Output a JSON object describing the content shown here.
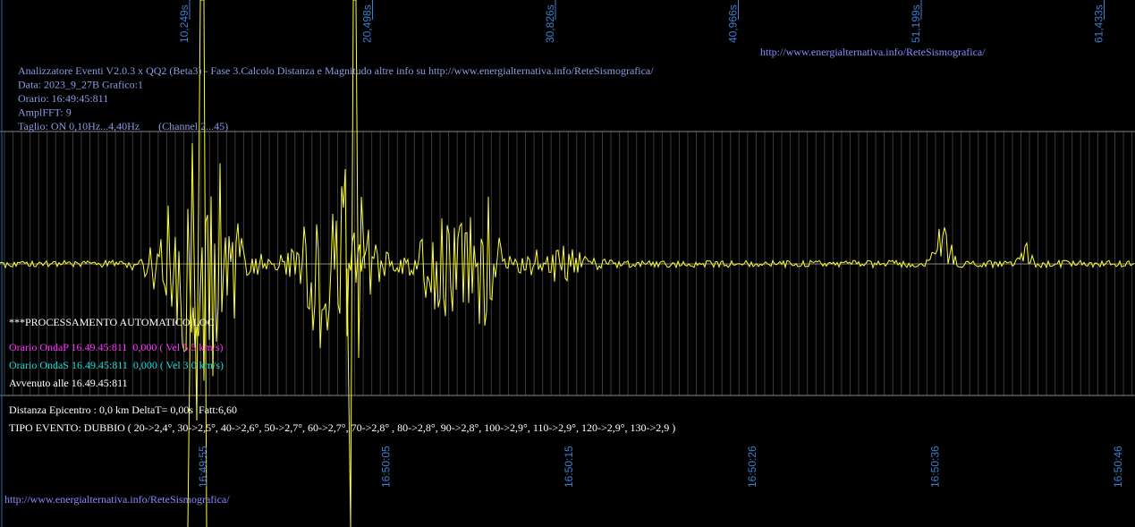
{
  "header": {
    "url": "http://www.energialternativa.info/ReteSismografica/",
    "info_lines": [
      "Analizzatore Eventi V2.0.3 x QQ2 (Beta3) - Fase 3.Calcolo Distanza e Magnitudo altre info su http://www.energialternativa.info/ReteSismografica/",
      "Data: 2023_9_27B Grafico:1",
      "Orario: 16:49:45:811",
      "AmplFFT: 9",
      "Taglio: ON 0,10Hz...4,40Hz       (Channel 2...45)"
    ]
  },
  "top_time_labels": [
    "10,249s",
    "20,498s",
    "30,826s",
    "40,966s",
    "51,199s",
    "61,433s"
  ],
  "bottom_time_labels": [
    "16:49:55",
    "16:50:05",
    "16:50:15",
    "16:50:26",
    "16:50:36",
    "16:50:46"
  ],
  "processing": {
    "title": "***PROCESSAMENTO AUTOMATICO LOC",
    "onda_p": "Orario OndaP 16.49.45:811  0,000 ( Vel 5,5 km/s)",
    "onda_s": "Orario OndaS 16.49.45:811  0,000 ( Vel 3,0 km/s)",
    "avvenuto": "Avvenuto alle 16.49.45:811",
    "distanza": "Distanza Epicentro : 0,0 km DeltaT= 0,00s  Fatt:6,60",
    "tipo_evento": "TIPO EVENTO: DUBBIO ( 20->2,4°, 30->2,5°, 40->2,6°, 50->2,7°, 60->2,7°, 70->2,8° , 80->2,8°, 90->2,8°, 100->2,9°, 110->2,9°, 120->2,9°, 130->2,9 )"
  },
  "footer": {
    "url": "http://www.energialternativa.info/ReteSismografica/"
  }
}
